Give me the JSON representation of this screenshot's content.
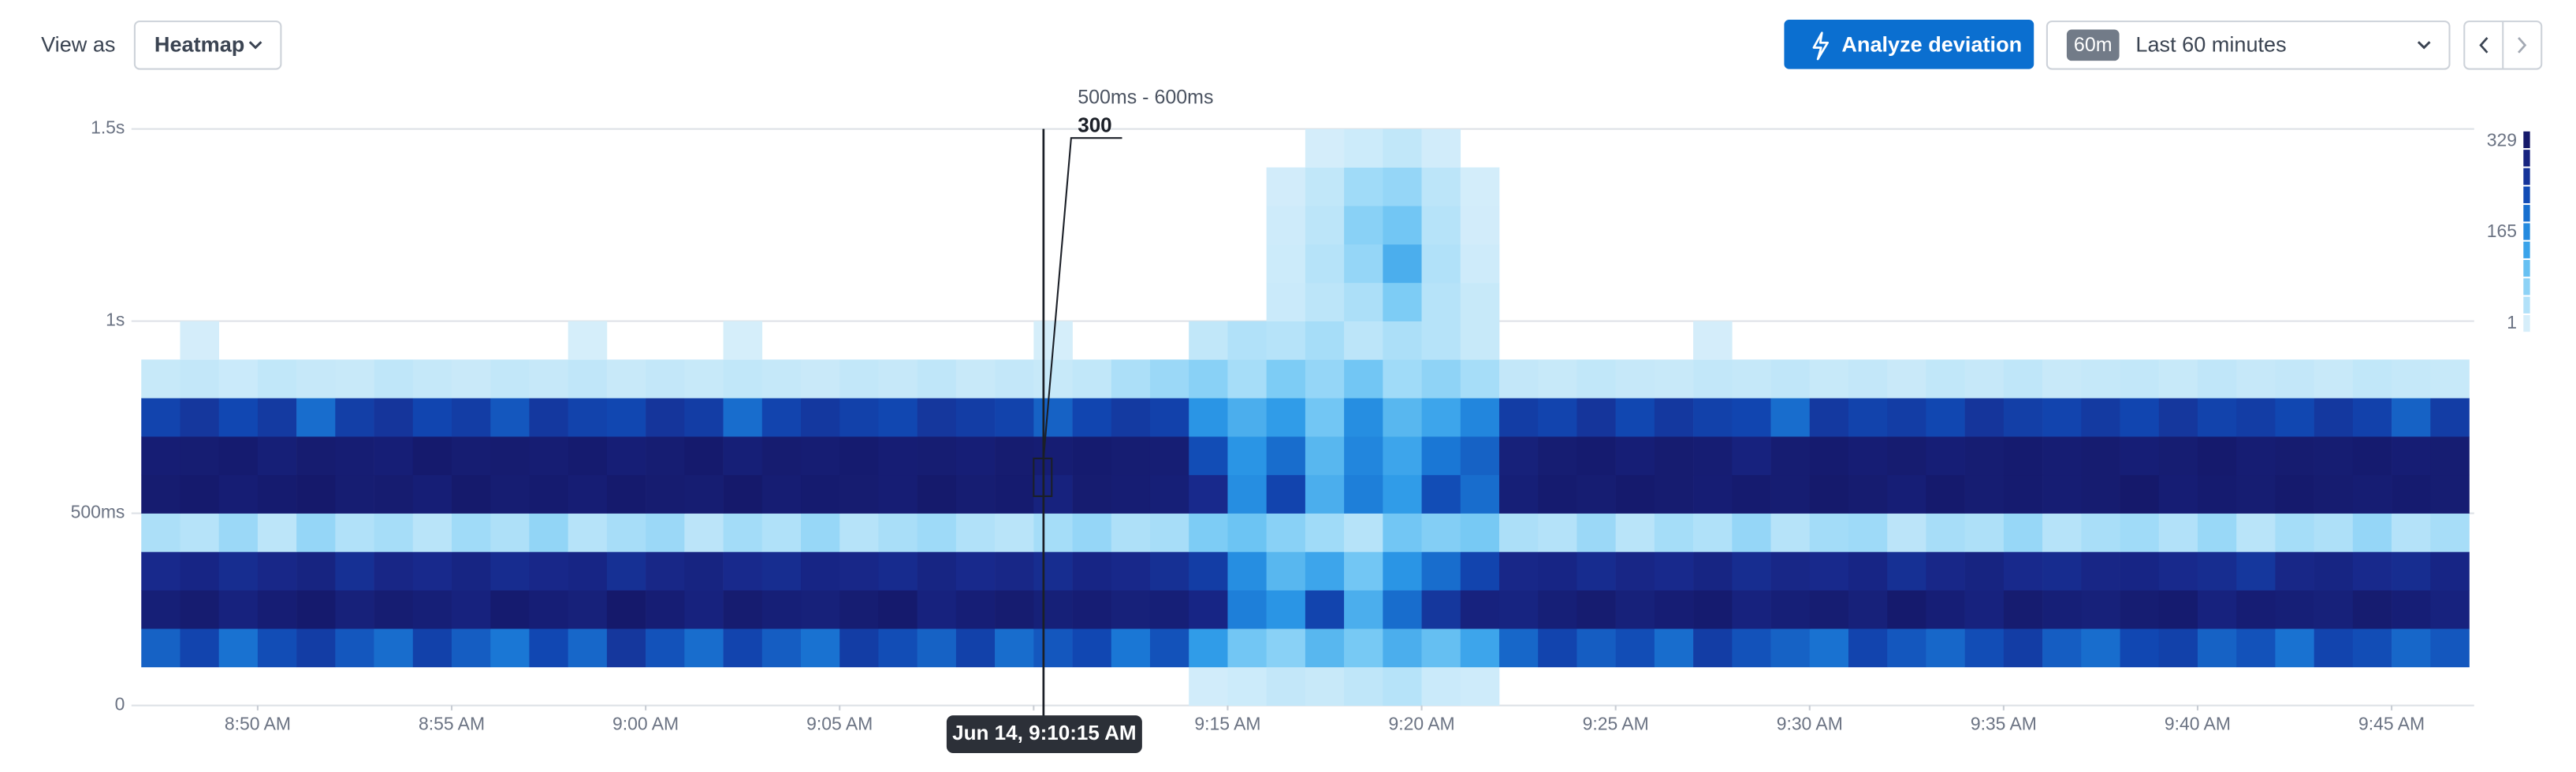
{
  "toolbar": {
    "view_as": "View as",
    "view_mode": "Heatmap",
    "analyze": "Analyze deviation",
    "range_badge": "60m",
    "range_label": "Last 60 minutes"
  },
  "chart_data": {
    "type": "heatmap",
    "ylim": [
      0,
      1500
    ],
    "yticks": [
      0,
      {
        "value": 500,
        "label": "500ms"
      },
      {
        "value": 1000,
        "label": "1s"
      },
      {
        "value": 1500,
        "label": "1.5s"
      }
    ],
    "ybins": [
      0,
      100,
      200,
      300,
      400,
      500,
      600,
      700,
      800,
      900,
      1000,
      1100,
      1200,
      1300,
      1400,
      1500
    ],
    "xlim": [
      0,
      60
    ],
    "xticks": [
      {
        "value": 3,
        "label": "8:50 AM"
      },
      {
        "value": 8,
        "label": "8:55 AM"
      },
      {
        "value": 13,
        "label": "9:00 AM"
      },
      {
        "value": 18,
        "label": "9:05 AM"
      },
      {
        "value": 23,
        "label": "9:10 AM"
      },
      {
        "value": 28,
        "label": "9:15 AM"
      },
      {
        "value": 33,
        "label": "9:20 AM"
      },
      {
        "value": 38,
        "label": "9:25 AM"
      },
      {
        "value": 43,
        "label": "9:30 AM"
      },
      {
        "value": 48,
        "label": "9:35 AM"
      },
      {
        "value": 53,
        "label": "9:40 AM"
      },
      {
        "value": 58,
        "label": "9:45 AM"
      }
    ],
    "grid": true,
    "color_scale": [
      "#d6eefa",
      "#a3dcf8",
      "#6cc4f3",
      "#2e9be8",
      "#1a79d6",
      "#1147b2",
      "#18288a",
      "#15196a"
    ],
    "colorbar": {
      "min": 1,
      "max": 329,
      "ticks": [
        1,
        165,
        329
      ]
    },
    "tooltip": {
      "range": "500ms - 600ms",
      "value": 300,
      "time": "Jun 14, 9:10:15 AM",
      "column": 23,
      "row": 5
    },
    "values": [
      [
        0,
        0,
        0,
        0,
        0,
        0,
        0,
        0,
        0,
        0,
        0,
        0,
        0,
        0,
        0,
        0,
        0,
        0,
        0,
        0,
        0,
        0,
        0,
        0,
        0,
        0,
        0,
        6,
        10,
        18,
        14,
        22,
        30,
        12,
        8,
        0,
        0,
        0,
        0,
        0,
        0,
        0,
        0,
        0,
        0,
        0,
        0,
        0,
        0,
        0,
        0,
        0,
        0,
        0,
        0,
        0,
        0,
        0,
        0,
        0
      ],
      [
        210,
        240,
        195,
        230,
        250,
        220,
        200,
        245,
        215,
        190,
        235,
        205,
        260,
        225,
        200,
        240,
        215,
        195,
        250,
        230,
        210,
        245,
        200,
        220,
        235,
        190,
        225,
        140,
        90,
        70,
        110,
        85,
        120,
        100,
        130,
        205,
        240,
        215,
        230,
        200,
        250,
        225,
        210,
        195,
        240,
        220,
        205,
        230,
        250,
        215,
        200,
        235,
        245,
        210,
        225,
        195,
        240,
        230,
        205,
        220
      ],
      [
        310,
        320,
        300,
        315,
        325,
        305,
        318,
        310,
        300,
        322,
        312,
        305,
        328,
        315,
        300,
        320,
        310,
        305,
        318,
        325,
        300,
        312,
        320,
        308,
        315,
        305,
        310,
        290,
        180,
        150,
        240,
        120,
        200,
        260,
        300,
        295,
        310,
        320,
        305,
        315,
        322,
        300,
        310,
        318,
        305,
        325,
        312,
        300,
        320,
        310,
        305,
        318,
        322,
        300,
        315,
        310,
        305,
        320,
        312,
        300
      ],
      [
        280,
        290,
        275,
        285,
        295,
        270,
        288,
        280,
        292,
        276,
        284,
        290,
        270,
        286,
        295,
        280,
        275,
        290,
        285,
        278,
        292,
        280,
        286,
        275,
        290,
        282,
        270,
        250,
        160,
        110,
        130,
        90,
        150,
        200,
        240,
        285,
        290,
        276,
        288,
        280,
        292,
        275,
        286,
        280,
        290,
        270,
        285,
        295,
        280,
        276,
        288,
        290,
        280,
        275,
        260,
        286,
        292,
        280,
        275,
        290
      ],
      [
        40,
        30,
        55,
        25,
        60,
        35,
        45,
        28,
        50,
        38,
        62,
        30,
        44,
        55,
        26,
        48,
        36,
        58,
        30,
        42,
        52,
        35,
        28,
        46,
        60,
        38,
        44,
        80,
        95,
        70,
        50,
        30,
        90,
        75,
        85,
        40,
        32,
        55,
        28,
        46,
        36,
        60,
        30,
        48,
        52,
        26,
        44,
        38,
        58,
        30,
        42,
        50,
        34,
        56,
        28,
        46,
        38,
        60,
        32,
        44
      ],
      [
        320,
        325,
        315,
        322,
        328,
        318,
        320,
        312,
        326,
        318,
        322,
        315,
        325,
        320,
        318,
        328,
        316,
        322,
        320,
        315,
        326,
        318,
        322,
        300,
        320,
        316,
        310,
        280,
        160,
        240,
        120,
        180,
        140,
        230,
        200,
        310,
        322,
        318,
        325,
        320,
        315,
        322,
        318,
        326,
        320,
        312,
        325,
        318,
        322,
        316,
        320,
        328,
        315,
        322,
        318,
        325,
        320,
        316,
        322,
        318
      ],
      [
        315,
        318,
        322,
        310,
        320,
        316,
        312,
        325,
        318,
        320,
        316,
        322,
        312,
        318,
        325,
        310,
        320,
        316,
        322,
        315,
        318,
        312,
        320,
        316,
        322,
        318,
        314,
        230,
        150,
        200,
        110,
        170,
        130,
        190,
        210,
        305,
        318,
        322,
        312,
        320,
        316,
        300,
        318,
        322,
        315,
        320,
        312,
        318,
        322,
        316,
        320,
        312,
        318,
        325,
        316,
        320,
        318,
        322,
        315,
        318
      ],
      [
        240,
        260,
        235,
        255,
        200,
        248,
        262,
        238,
        250,
        220,
        258,
        242,
        236,
        262,
        250,
        200,
        240,
        258,
        245,
        236,
        260,
        250,
        242,
        210,
        238,
        255,
        244,
        150,
        120,
        140,
        90,
        160,
        110,
        130,
        170,
        250,
        240,
        262,
        236,
        258,
        245,
        238,
        200,
        256,
        242,
        250,
        236,
        262,
        248,
        240,
        255,
        238,
        260,
        242,
        250,
        236,
        258,
        244,
        210,
        250
      ],
      [
        15,
        18,
        12,
        20,
        16,
        14,
        22,
        17,
        13,
        19,
        16,
        21,
        14,
        18,
        15,
        20,
        17,
        13,
        19,
        16,
        22,
        14,
        18,
        15,
        20,
        40,
        55,
        70,
        45,
        80,
        60,
        90,
        50,
        65,
        45,
        18,
        15,
        20,
        16,
        14,
        19,
        17,
        21,
        15,
        18,
        13,
        20,
        16,
        22,
        14,
        17,
        19,
        15,
        21,
        16,
        18,
        14,
        20,
        17,
        15
      ],
      [
        0,
        3,
        0,
        0,
        0,
        0,
        0,
        0,
        0,
        0,
        0,
        2,
        0,
        0,
        0,
        2,
        0,
        0,
        0,
        0,
        0,
        0,
        0,
        2,
        0,
        0,
        0,
        20,
        35,
        30,
        45,
        25,
        40,
        30,
        15,
        0,
        0,
        0,
        0,
        0,
        3,
        0,
        0,
        0,
        0,
        0,
        0,
        0,
        0,
        0,
        0,
        0,
        0,
        0,
        0,
        0,
        0,
        0,
        0,
        0
      ],
      [
        0,
        0,
        0,
        0,
        0,
        0,
        0,
        0,
        0,
        0,
        0,
        0,
        0,
        0,
        0,
        0,
        0,
        0,
        0,
        0,
        0,
        0,
        0,
        0,
        0,
        0,
        0,
        0,
        0,
        12,
        25,
        40,
        80,
        30,
        15,
        0,
        0,
        0,
        0,
        0,
        0,
        0,
        0,
        0,
        0,
        0,
        0,
        0,
        0,
        0,
        0,
        0,
        0,
        0,
        0,
        0,
        0,
        0,
        0,
        0
      ],
      [
        0,
        0,
        0,
        0,
        0,
        0,
        0,
        0,
        0,
        0,
        0,
        0,
        0,
        0,
        0,
        0,
        0,
        0,
        0,
        0,
        0,
        0,
        0,
        0,
        0,
        0,
        0,
        0,
        0,
        10,
        30,
        60,
        120,
        35,
        8,
        0,
        0,
        0,
        0,
        0,
        0,
        0,
        0,
        0,
        0,
        0,
        0,
        0,
        0,
        0,
        0,
        0,
        0,
        0,
        0,
        0,
        0,
        0,
        0,
        0
      ],
      [
        0,
        0,
        0,
        0,
        0,
        0,
        0,
        0,
        0,
        0,
        0,
        0,
        0,
        0,
        0,
        0,
        0,
        0,
        0,
        0,
        0,
        0,
        0,
        0,
        0,
        0,
        0,
        0,
        0,
        8,
        25,
        70,
        90,
        30,
        5,
        0,
        0,
        0,
        0,
        0,
        0,
        0,
        0,
        0,
        0,
        0,
        0,
        0,
        0,
        0,
        0,
        0,
        0,
        0,
        0,
        0,
        0,
        0,
        0,
        0
      ],
      [
        0,
        0,
        0,
        0,
        0,
        0,
        0,
        0,
        0,
        0,
        0,
        0,
        0,
        0,
        0,
        0,
        0,
        0,
        0,
        0,
        0,
        0,
        0,
        0,
        0,
        0,
        0,
        0,
        0,
        5,
        20,
        50,
        60,
        25,
        4,
        0,
        0,
        0,
        0,
        0,
        0,
        0,
        0,
        0,
        0,
        0,
        0,
        0,
        0,
        0,
        0,
        0,
        0,
        0,
        0,
        0,
        0,
        0,
        0,
        0
      ],
      [
        0,
        0,
        0,
        0,
        0,
        0,
        0,
        0,
        0,
        0,
        0,
        0,
        0,
        0,
        0,
        0,
        0,
        0,
        0,
        0,
        0,
        0,
        0,
        0,
        0,
        0,
        0,
        0,
        0,
        0,
        3,
        10,
        20,
        6,
        0,
        0,
        0,
        0,
        0,
        0,
        0,
        0,
        0,
        0,
        0,
        0,
        0,
        0,
        0,
        0,
        0,
        0,
        0,
        0,
        0,
        0,
        0,
        0,
        0,
        0
      ]
    ]
  }
}
